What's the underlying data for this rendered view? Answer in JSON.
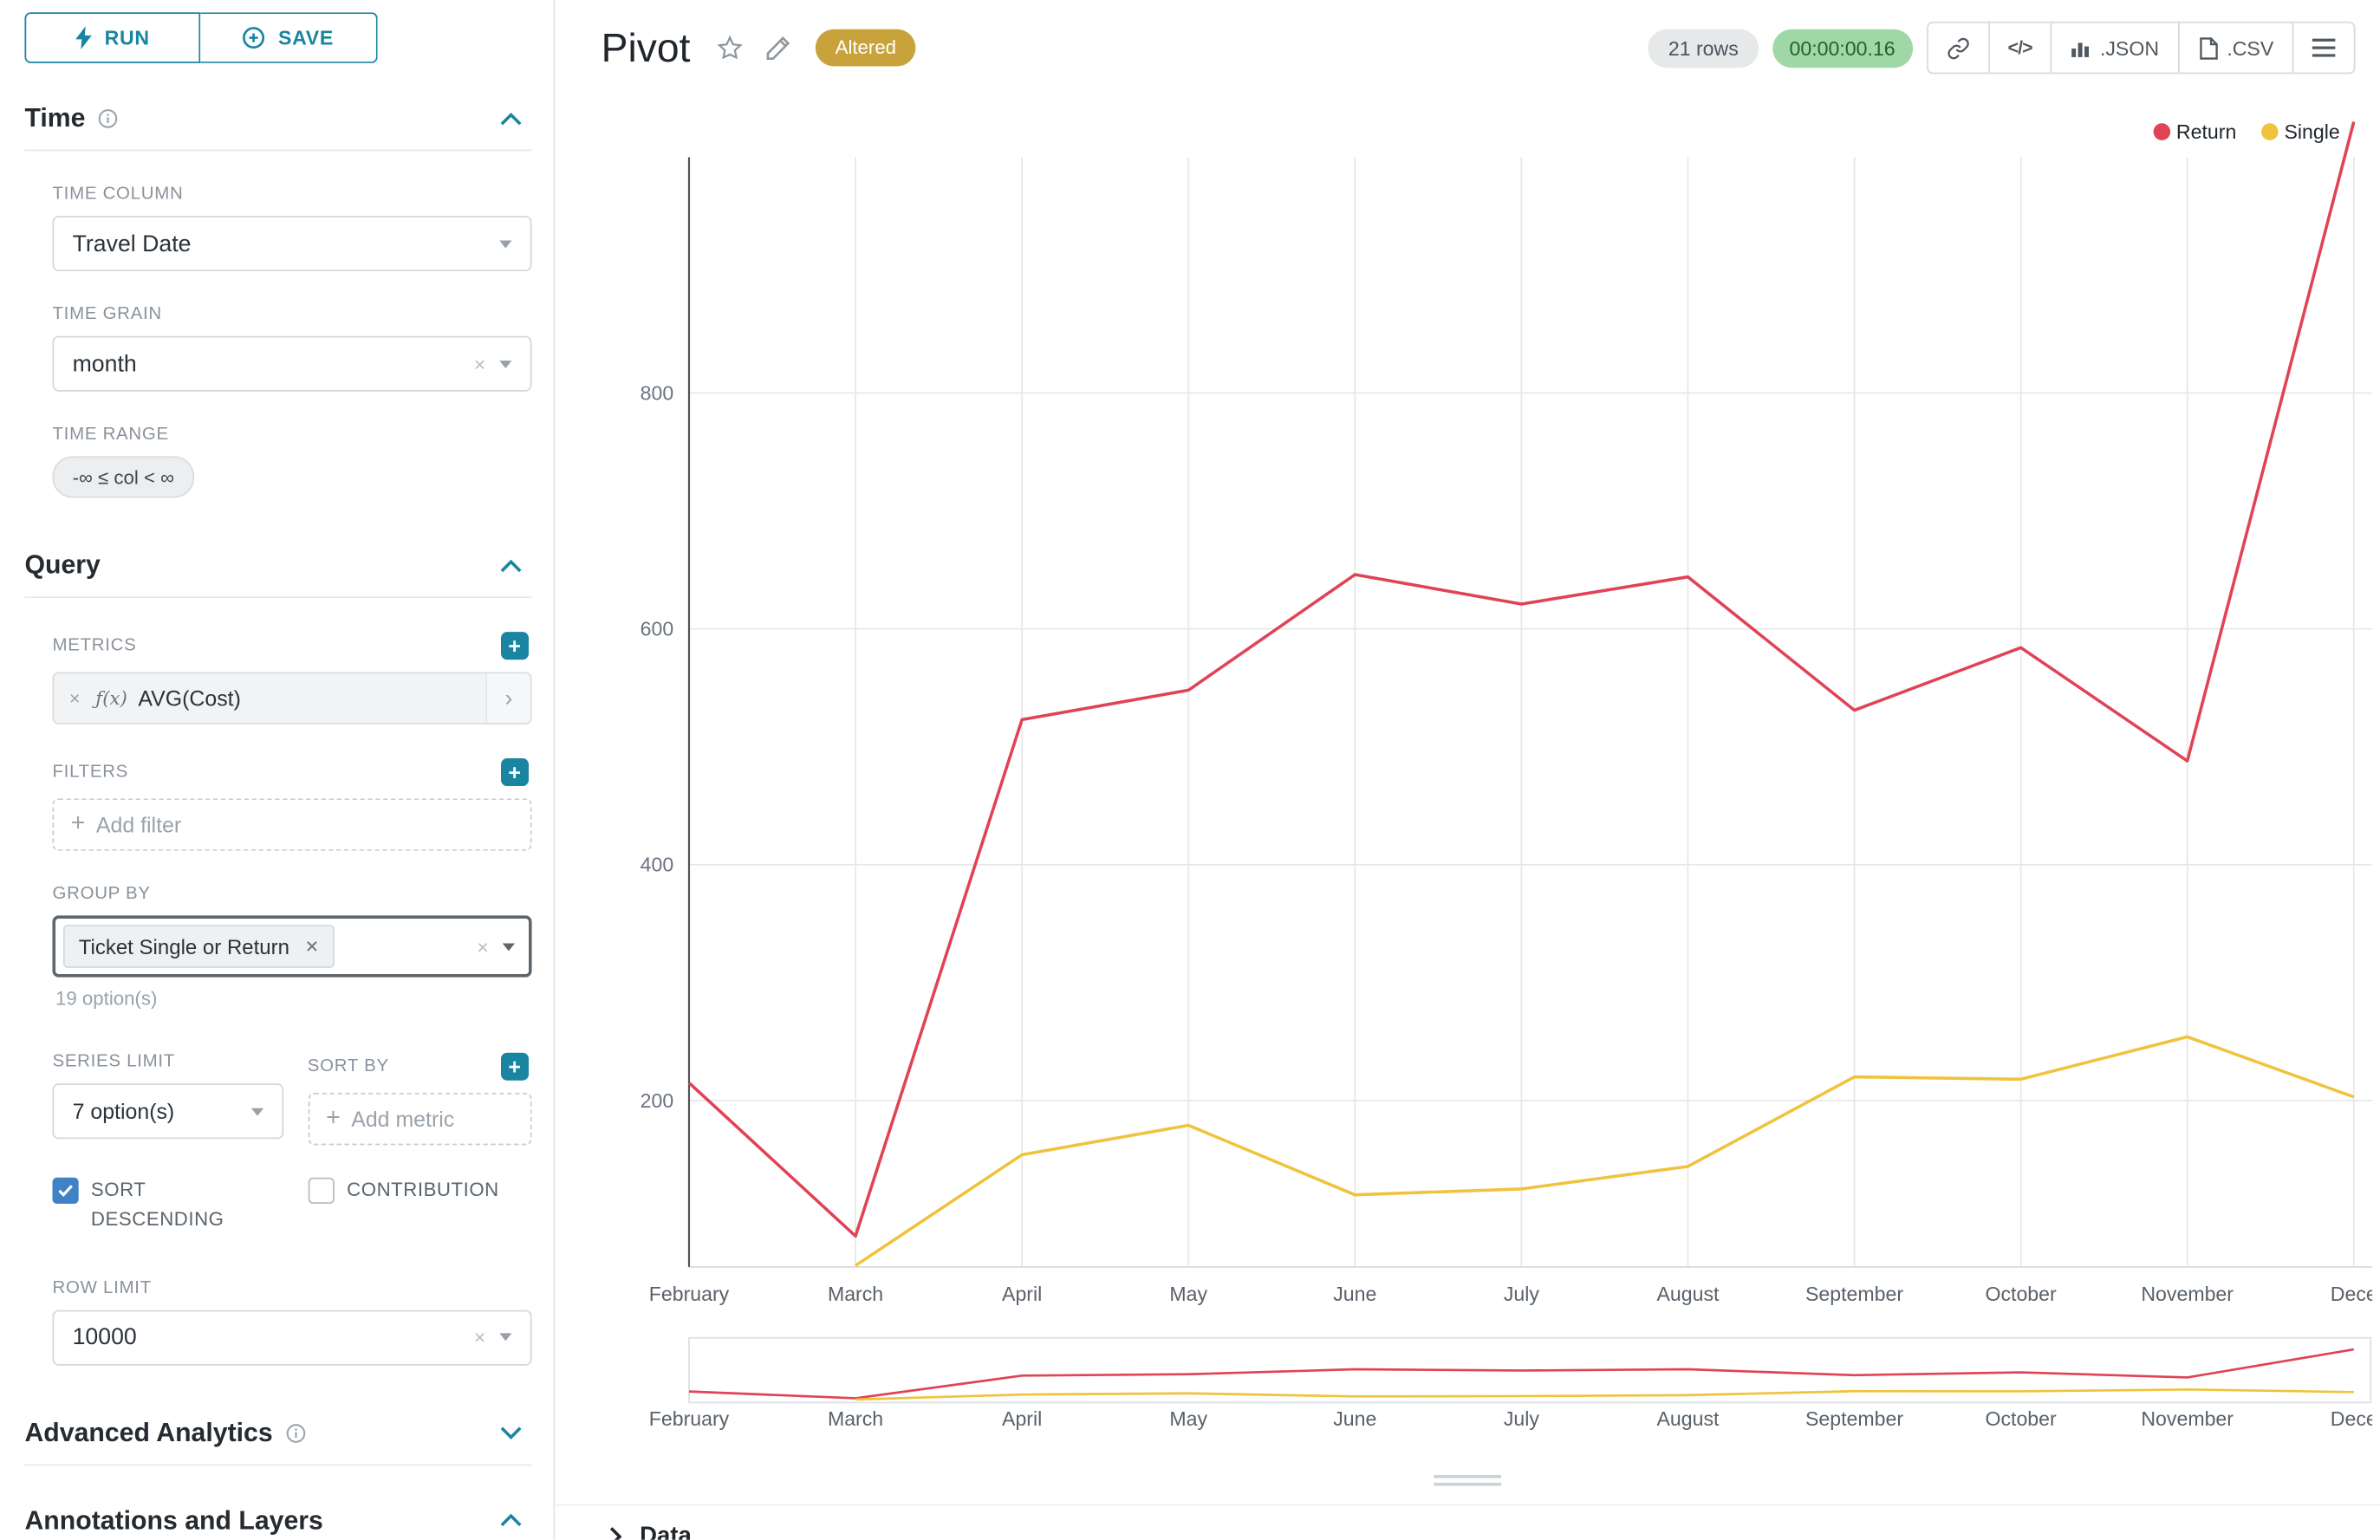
{
  "sidebar": {
    "run_button": "RUN",
    "save_button": "SAVE",
    "time": {
      "title": "Time",
      "time_column_label": "TIME COLUMN",
      "time_column_value": "Travel Date",
      "time_grain_label": "TIME GRAIN",
      "time_grain_value": "month",
      "time_range_label": "TIME RANGE",
      "time_range_value": "-∞ ≤ col < ∞"
    },
    "query": {
      "title": "Query",
      "metrics_label": "METRICS",
      "metric_fx": "ƒ(x)",
      "metric_name": "AVG(Cost)",
      "filters_label": "FILTERS",
      "add_filter_placeholder": "Add filter",
      "group_by_label": "GROUP BY",
      "group_by_value": "Ticket Single or Return",
      "group_by_hint": "19 option(s)",
      "series_limit_label": "SERIES LIMIT",
      "series_limit_value": "7 option(s)",
      "sort_by_label": "SORT BY",
      "add_metric_placeholder": "Add metric",
      "sort_descending_label": "SORT DESCENDING",
      "contribution_label": "CONTRIBUTION",
      "row_limit_label": "ROW LIMIT",
      "row_limit_value": "10000"
    },
    "advanced_analytics_title": "Advanced Analytics",
    "annotations_title": "Annotations and Layers"
  },
  "header": {
    "title": "Pivot",
    "altered_badge": "Altered",
    "rows_badge": "21 rows",
    "timer_badge": "00:00:00.16",
    "code_icon_label": "</>",
    "json_button": ".JSON",
    "csv_button": ".CSV"
  },
  "data_panel": {
    "title": "Data"
  },
  "chart_data": {
    "type": "line",
    "x": [
      "February",
      "March",
      "April",
      "May",
      "June",
      "July",
      "August",
      "September",
      "October",
      "November",
      "December"
    ],
    "x_display": [
      "February",
      "March",
      "April",
      "May",
      "June",
      "July",
      "August",
      "September",
      "October",
      "November",
      "Dece"
    ],
    "series": [
      {
        "name": "Return",
        "color": "#e04355",
        "values": [
          215,
          85,
          523,
          548,
          646,
          621,
          644,
          531,
          584,
          488,
          1030
        ]
      },
      {
        "name": "Single",
        "color": "#efc33d",
        "values": [
          null,
          60,
          154,
          179,
          120,
          125,
          144,
          220,
          218,
          254,
          203
        ]
      }
    ],
    "yticks": [
      200,
      400,
      600,
      800
    ],
    "ylim": [
      60,
      1000
    ],
    "grid": true,
    "legend_position": "top-right",
    "has_mini_navigator": true
  }
}
